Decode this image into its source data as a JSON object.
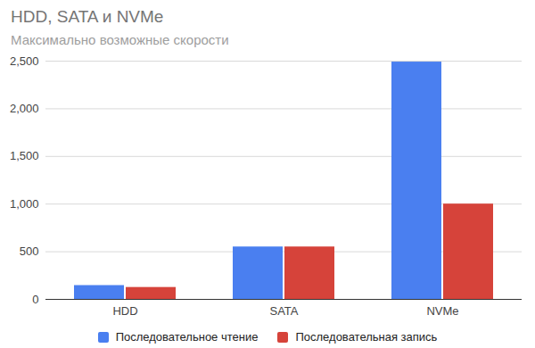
{
  "chart_data": {
    "type": "bar",
    "title": "HDD, SATA и NVMe",
    "subtitle": "Максимально возможные скорости",
    "categories": [
      "HDD",
      "SATA",
      "NVMe"
    ],
    "series": [
      {
        "name": "Последовательное чтение",
        "color": "#4a7ff0",
        "values": [
          145,
          550,
          2490
        ]
      },
      {
        "name": "Последовательная запись",
        "color": "#d6433a",
        "values": [
          125,
          550,
          1000
        ]
      }
    ],
    "ylim": [
      0,
      2500
    ],
    "yticks": [
      0,
      500,
      1000,
      1500,
      2000,
      2500
    ],
    "grid": true,
    "legend": "bottom"
  }
}
